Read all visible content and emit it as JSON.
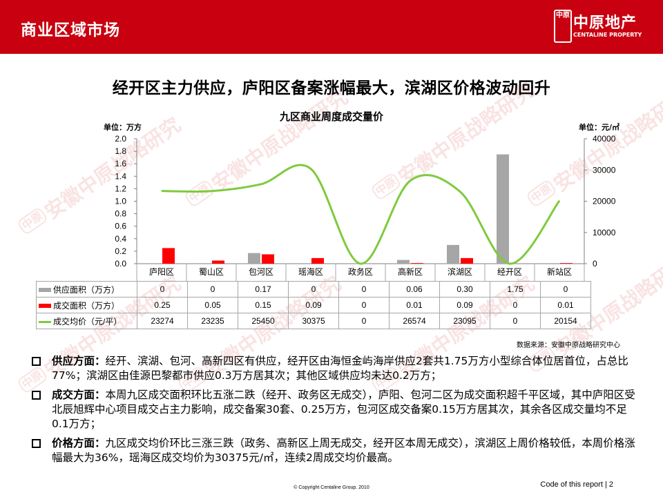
{
  "header": {
    "title": "商业区域市场",
    "logo": {
      "seal_text": "中原",
      "cn": "中原地产",
      "en": "CENTALINE PROPERTY"
    }
  },
  "headline": "经开区主力供应，庐阳区备案涨幅最大，滨湖区价格波动回升",
  "watermark_text": "安徽中原战略研究",
  "colors": {
    "header_red": "#c8000f",
    "supply_gray": "#a6a6a6",
    "deal_red": "#ff0000",
    "price_green": "#7fca3c"
  },
  "chart_data": {
    "type": "bar",
    "title": "九区商业周度成交量价",
    "unit_left": "单位：万方",
    "unit_right": "单位：元/㎡",
    "categories": [
      "庐阳区",
      "蜀山区",
      "包河区",
      "瑶海区",
      "政务区",
      "高新区",
      "滨湖区",
      "经开区",
      "新站区"
    ],
    "y_left": {
      "ticks": [
        "0.0",
        "0.2",
        "0.4",
        "0.6",
        "0.8",
        "1.0",
        "1.2",
        "1.4",
        "1.6",
        "1.8",
        "2.0"
      ],
      "min": 0,
      "max": 2.0
    },
    "y_right": {
      "ticks": [
        "0",
        "10000",
        "20000",
        "30000",
        "40000"
      ],
      "min": 0,
      "max": 40000
    },
    "series": [
      {
        "name": "供应面积（万方）",
        "type": "bar",
        "values": [
          0,
          0,
          0.17,
          0,
          0,
          0.06,
          0.3,
          1.75,
          0
        ],
        "display": [
          "0",
          "0",
          "0.17",
          "0",
          "0",
          "0.06",
          "0.30",
          "1.75",
          "0"
        ]
      },
      {
        "name": "成交面积（万方）",
        "type": "bar",
        "values": [
          0.25,
          0.05,
          0.15,
          0.09,
          0,
          0.01,
          0.09,
          0,
          0.01
        ],
        "display": [
          "0.25",
          "0.05",
          "0.15",
          "0.09",
          "0",
          "0.01",
          "0.09",
          "0",
          "0.01"
        ]
      },
      {
        "name": "成交均价（元/平）",
        "type": "line",
        "axis": "right",
        "values": [
          23274,
          23235,
          25450,
          30375,
          0,
          26574,
          23095,
          0,
          20154
        ],
        "display": [
          "23274",
          "23235",
          "25450",
          "30375",
          "0",
          "26574",
          "23095",
          "0",
          "20154"
        ]
      }
    ],
    "grid": false,
    "source": "数据来源：安徽中原战略研究中心"
  },
  "bullets": [
    {
      "head": "供应方面：",
      "text": "经开、滨湖、包河、高新四区有供应，经开区由海恒金屿海岸供应2套共1.75万方小型综合体位居首位，占总比77%；滨湖区由佳源巴黎都市供应0.3万方居其次；其他区域供应均未达0.2万方；"
    },
    {
      "head": "成交方面：",
      "text": "本周九区成交面积环比五涨二跌（经开、政务区无成交），庐阳、包河二区为成交面积超千平区域，其中庐阳区受北辰旭辉中心项目成交占主力影响，成交备案30套、0.25万方，包河区成交备案0.15万方居其次，其余各区成交量均不足0.1万方；"
    },
    {
      "head": "价格方面：",
      "text": "九区成交均价环比三涨三跌（政务、高新区上周无成交，经开区本周无成交），滨湖区上周价格较低，本周价格涨幅最大为36%，瑶海区成交均价为30375元/㎡，连续2周成交均价最高。"
    }
  ],
  "footer": {
    "copyright": "© Copyright  Centaline Group. 2010",
    "code": "Code of this report  |  2"
  }
}
